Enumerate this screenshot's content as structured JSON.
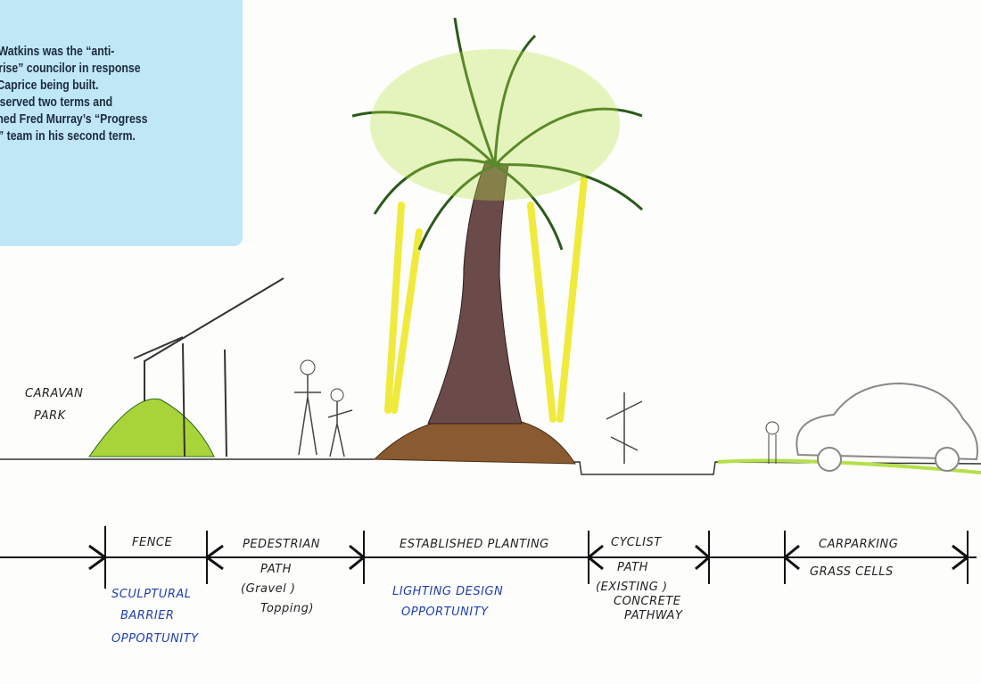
{
  "tooltip": {
    "lines": [
      "m Watkins was the “anti-",
      "ghrise” councilor in response",
      "Caprice being built.",
      "served two terms and",
      "ned Fred Murray’s “Progress",
      "” team in his second term."
    ]
  },
  "sketch": {
    "site_label": [
      "CARAVAN",
      "PARK"
    ],
    "zones": {
      "fence": [
        "FENCE"
      ],
      "pedestrian_path": [
        "PEDESTRIAN",
        "PATH",
        "(Gravel )",
        "Topping)"
      ],
      "established_planting": [
        "ESTABLISHED PLANTING"
      ],
      "cyclist_path": [
        "CYCLIST",
        "PATH",
        "(EXISTING )",
        "CONCRETE",
        "PATHWAY"
      ],
      "carparking": [
        "CARPARKING",
        "GRASS CELLS"
      ]
    },
    "opportunities": {
      "sculptural_barrier": [
        "SCULPTURAL",
        "BARRIER",
        "OPPORTUNITY"
      ],
      "lighting_design": [
        "LIGHTING DESIGN",
        "OPPORTUNITY"
      ]
    }
  }
}
